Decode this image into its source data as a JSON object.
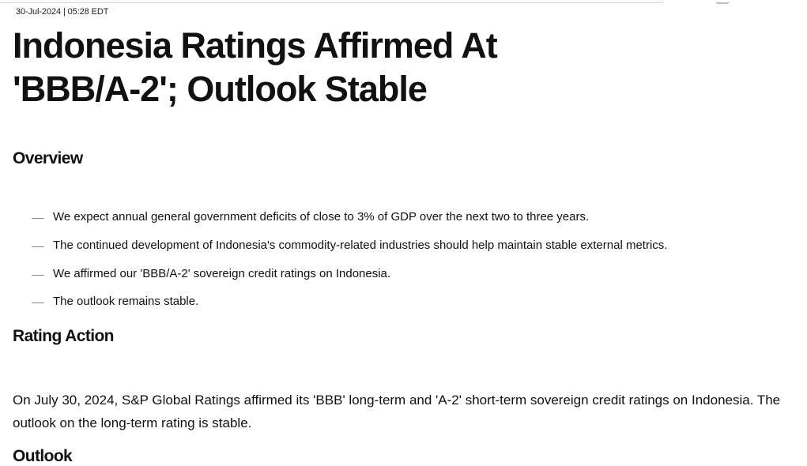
{
  "article": {
    "meta": "30-Jul-2024 | 05:28 EDT",
    "title": "Indonesia Ratings Affirmed At 'BBB/A-2'; Outlook Stable"
  },
  "sections": {
    "overview": {
      "heading": "Overview",
      "bullets": [
        "We expect annual general government deficits of close to 3% of GDP over the next two to three years.",
        "The continued development of Indonesia's commodity-related industries should help maintain stable external metrics.",
        "We affirmed our 'BBB/A-2' sovereign credit ratings on Indonesia.",
        "The outlook remains stable."
      ]
    },
    "rating_action": {
      "heading": "Rating Action",
      "paragraph": "On July 30, 2024, S&P Global Ratings affirmed its 'BBB' long-term and 'A-2' short-term sovereign credit ratings on Indonesia. The outlook on the long-term rating is stable."
    },
    "outlook": {
      "heading": "Outlook"
    }
  }
}
